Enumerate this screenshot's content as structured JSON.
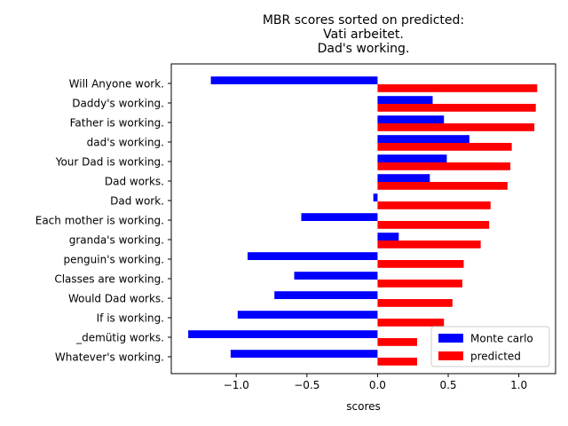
{
  "chart_data": {
    "type": "bar",
    "orientation": "horizontal",
    "title_lines": [
      "MBR scores sorted on predicted:",
      "Vati arbeitet.",
      "Dad's working."
    ],
    "xlabel": "scores",
    "ylabel": "",
    "xlim": [
      -1.46,
      1.26
    ],
    "xticks": [
      -1.0,
      -0.5,
      0.0,
      0.5,
      1.0
    ],
    "xtick_labels": [
      "−1.0",
      "−0.5",
      "0.0",
      "0.5",
      "1.0"
    ],
    "categories": [
      "Will Anyone work.",
      "Daddy's working.",
      "Father is working.",
      "dad's working.",
      "Your Dad is working.",
      "Dad works.",
      "Dad work.",
      "Each mother is working.",
      "granda's working.",
      "penguin's working.",
      "Classes are working.",
      "Would Dad works.",
      "If is working.",
      "_demütig works.",
      "Whatever's working."
    ],
    "series": [
      {
        "name": "Monte carlo",
        "color": "#0000ff",
        "values": [
          -1.18,
          0.39,
          0.47,
          0.65,
          0.49,
          0.37,
          -0.03,
          -0.54,
          0.15,
          -0.92,
          -0.59,
          -0.73,
          -0.99,
          -1.34,
          -1.04
        ]
      },
      {
        "name": "predicted",
        "color": "#ff0000",
        "values": [
          1.13,
          1.12,
          1.11,
          0.95,
          0.94,
          0.92,
          0.8,
          0.79,
          0.73,
          0.61,
          0.6,
          0.53,
          0.47,
          0.28,
          0.28
        ]
      }
    ],
    "legend": {
      "position": "lower-right"
    },
    "grid": false
  }
}
